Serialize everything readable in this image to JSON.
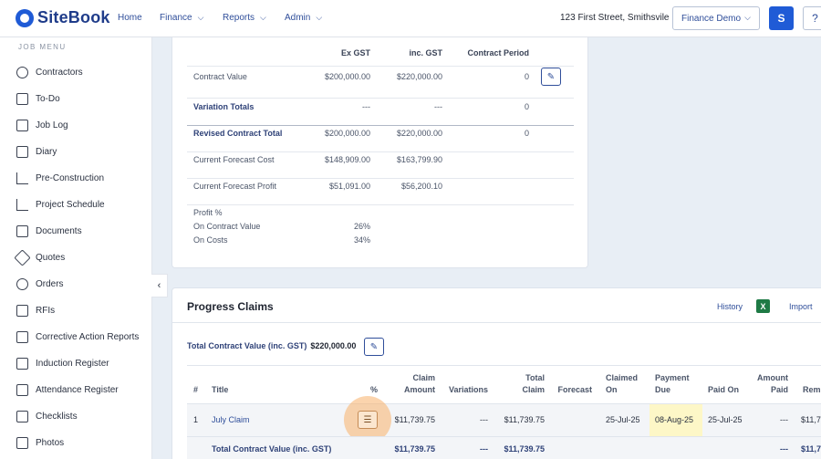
{
  "app": {
    "name": "SiteBook"
  },
  "nav": [
    {
      "label": "Home"
    },
    {
      "label": "Finance"
    },
    {
      "label": "Reports"
    },
    {
      "label": "Admin"
    }
  ],
  "header": {
    "address": "123 First Street, Smithsvile",
    "project_select": "Finance Demo",
    "avatar": "S",
    "help": "?"
  },
  "sidebar": {
    "heading": "JOB MENU",
    "items": [
      {
        "label": "Contractors",
        "icon": "contractors-icon"
      },
      {
        "label": "To-Do",
        "icon": "todo-icon"
      },
      {
        "label": "Job Log",
        "icon": "job-log-icon"
      },
      {
        "label": "Diary",
        "icon": "diary-icon"
      },
      {
        "label": "Pre-Construction",
        "icon": "pre-construction-icon"
      },
      {
        "label": "Project Schedule",
        "icon": "schedule-icon"
      },
      {
        "label": "Documents",
        "icon": "documents-icon"
      },
      {
        "label": "Quotes",
        "icon": "quotes-icon"
      },
      {
        "label": "Orders",
        "icon": "orders-icon"
      },
      {
        "label": "RFIs",
        "icon": "rfis-icon"
      },
      {
        "label": "Corrective Action Reports",
        "icon": "car-icon"
      },
      {
        "label": "Induction Register",
        "icon": "induction-icon"
      },
      {
        "label": "Attendance Register",
        "icon": "attendance-icon"
      },
      {
        "label": "Checklists",
        "icon": "checklists-icon"
      },
      {
        "label": "Photos",
        "icon": "photos-icon"
      }
    ]
  },
  "contract": {
    "headers": {
      "ex_gst": "Ex GST",
      "inc_gst": "inc. GST",
      "period": "Contract Period"
    },
    "rows": [
      {
        "label": "Contract Value",
        "ex": "$200,000.00",
        "inc": "$220,000.00",
        "period": "0"
      },
      {
        "label": "Variation Totals",
        "ex": "---",
        "inc": "---",
        "period": "0"
      },
      {
        "label": "Revised Contract Total",
        "ex": "$200,000.00",
        "inc": "$220,000.00",
        "period": "0"
      },
      {
        "label": "Current Forecast Cost",
        "ex": "$148,909.00",
        "inc": "$163,799.90",
        "period": ""
      },
      {
        "label": "Current Forecast Profit",
        "ex": "$51,091.00",
        "inc": "$56,200.10",
        "period": ""
      }
    ],
    "profit": {
      "heading": "Profit %",
      "on_contract_label": "On Contract Value",
      "on_contract_value": "26%",
      "on_costs_label": "On Costs",
      "on_costs_value": "34%"
    }
  },
  "progress_claims": {
    "title": "Progress Claims",
    "history_label": "History",
    "excel_icon": "X",
    "import_label": "Import",
    "total_contract_label": "Total Contract Value (inc. GST)",
    "total_contract_value": "$220,000.00",
    "columns": {
      "num": "#",
      "title": "Title",
      "pct": "%",
      "claim_amount": [
        "Claim",
        "Amount"
      ],
      "variations": "Variations",
      "total_claim": [
        "Total",
        "Claim"
      ],
      "forecast": "Forecast",
      "claimed_on": [
        "Claimed",
        "On"
      ],
      "payment_due": [
        "Payment",
        "Due"
      ],
      "paid_on": "Paid On",
      "amount_paid": [
        "Amount",
        "Paid"
      ],
      "remaining": "Rem"
    },
    "rows": [
      {
        "num": "1",
        "title": "July Claim",
        "claim_amount": "$11,739.75",
        "variations": "---",
        "total_claim": "$11,739.75",
        "forecast": "",
        "claimed_on": "25-Jul-25",
        "payment_due": "08-Aug-25",
        "paid_on": "25-Jul-25",
        "amount_paid": "---",
        "remaining": "$11,7"
      }
    ],
    "totals": {
      "label": "Total Contract Value (inc. GST)",
      "claim_amount": "$11,739.75",
      "variations": "---",
      "total_claim": "$11,739.75",
      "amount_paid": "---",
      "remaining": "$11,7"
    }
  }
}
